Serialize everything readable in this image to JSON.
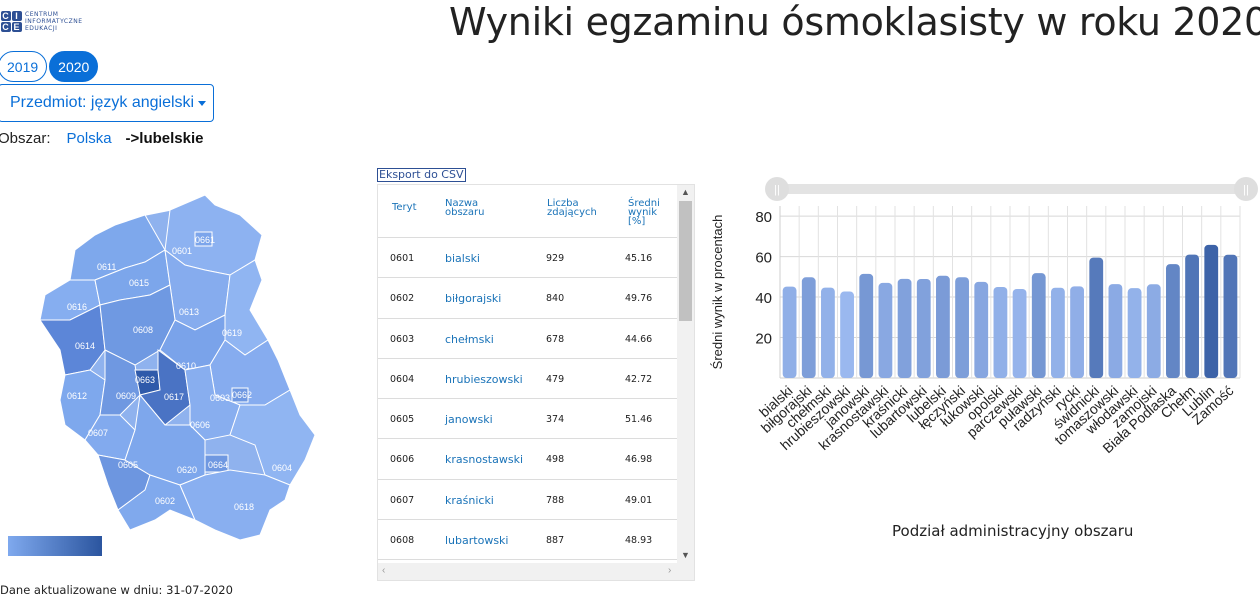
{
  "logo": {
    "mark": [
      "C",
      "I",
      "C",
      "E"
    ],
    "text_lines": [
      "CENTRUM",
      "INFORMATYCZNE",
      "EDUKACJI"
    ]
  },
  "title": "Wyniki egzaminu ósmoklasisty w roku 2020",
  "year_tabs": [
    {
      "label": "2019",
      "active": false
    },
    {
      "label": "2020",
      "active": true
    }
  ],
  "subject_button": {
    "label": "Przedmiot: język angielski",
    "icon": "caret-down-icon"
  },
  "area": {
    "label": "Obszar:",
    "link": "Polska",
    "current": "->lubelskie"
  },
  "map": {
    "regions": [
      "0601",
      "0602",
      "0603",
      "0604",
      "0605",
      "0606",
      "0607",
      "0608",
      "0609",
      "0610",
      "0611",
      "0612",
      "0613",
      "0614",
      "0615",
      "0616",
      "0617",
      "0618",
      "0619",
      "0620",
      "0661",
      "0662",
      "0663",
      "0664"
    ],
    "color_low": "#7fa9ee",
    "color_high": "#2b559f"
  },
  "update_note": "Dane aktualizowane w dniu: 31-07-2020",
  "export_label": "Eksport do CSV",
  "table": {
    "headers": {
      "teryt": "Teryt",
      "name": [
        "Nazwa",
        "obszaru"
      ],
      "count": [
        "Liczba",
        "zdających"
      ],
      "avg": [
        "Średni",
        "wynik",
        "[%]"
      ]
    },
    "rows": [
      {
        "teryt": "0601",
        "name": "bialski",
        "count": "929",
        "avg": "45.16"
      },
      {
        "teryt": "0602",
        "name": "biłgorajski",
        "count": "840",
        "avg": "49.76"
      },
      {
        "teryt": "0603",
        "name": "chełmski",
        "count": "678",
        "avg": "44.66"
      },
      {
        "teryt": "0604",
        "name": "hrubieszowski",
        "count": "479",
        "avg": "42.72"
      },
      {
        "teryt": "0605",
        "name": "janowski",
        "count": "374",
        "avg": "51.46"
      },
      {
        "teryt": "0606",
        "name": "krasnostawski",
        "count": "498",
        "avg": "46.98"
      },
      {
        "teryt": "0607",
        "name": "kraśnicki",
        "count": "788",
        "avg": "49.01"
      },
      {
        "teryt": "0608",
        "name": "lubartowski",
        "count": "887",
        "avg": "48.93"
      }
    ]
  },
  "chart_data": {
    "type": "bar",
    "categories": [
      "bialski",
      "biłgorajski",
      "chełmski",
      "hrubieszowski",
      "janowski",
      "krasnostawski",
      "kraśnicki",
      "lubartowski",
      "lubelski",
      "łęczyński",
      "łukowski",
      "opolski",
      "parczewski",
      "puławski",
      "radzyński",
      "rycki",
      "świdnicki",
      "tomaszowski",
      "włodawski",
      "zamojski",
      "Biała Podlaska",
      "Chełm",
      "Lublin",
      "Zamość"
    ],
    "values": [
      45.16,
      49.76,
      44.66,
      42.72,
      51.46,
      46.98,
      49.01,
      48.93,
      50.5,
      49.8,
      47.5,
      45.0,
      44.0,
      51.8,
      44.6,
      45.3,
      59.5,
      46.4,
      44.4,
      46.3,
      56.3,
      61.0,
      65.8,
      60.9
    ],
    "ylabel": "Średni wynik w procentach",
    "xlabel": "Podział administracyjny obszaru",
    "yticks": [
      20,
      40,
      60,
      80
    ],
    "ylim": [
      0,
      85
    ],
    "grid": true,
    "color_low": "#9ab8ef",
    "color_high": "#3d63a8"
  }
}
